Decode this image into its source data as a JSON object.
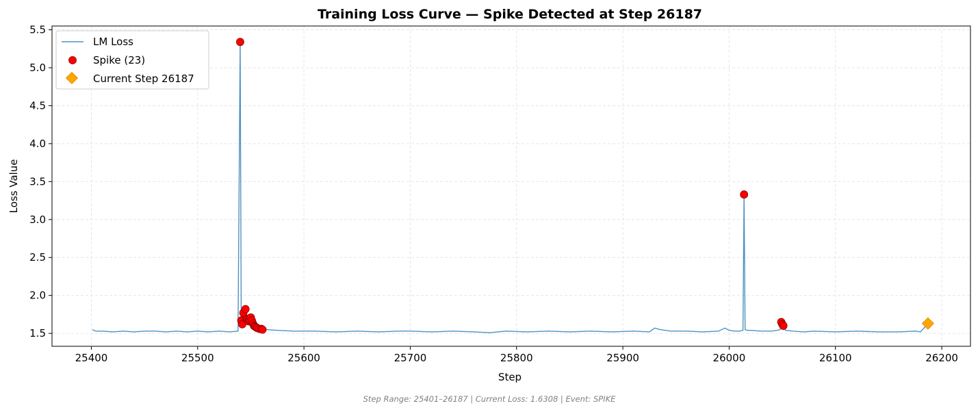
{
  "chart_data": {
    "type": "line",
    "title": "Training Loss Curve — Spike Detected at Step 26187",
    "xlabel": "Step",
    "ylabel": "Loss Value",
    "xlim": [
      25363,
      26227
    ],
    "ylim": [
      1.33,
      5.55
    ],
    "xticks": [
      25400,
      25500,
      25600,
      25700,
      25800,
      25900,
      26000,
      26100,
      26200
    ],
    "yticks": [
      1.5,
      2.0,
      2.5,
      3.0,
      3.5,
      4.0,
      4.5,
      5.0,
      5.5
    ],
    "grid": true,
    "legend_position": "top-left",
    "footer": "Step Range: 25401–26187 | Current Loss: 1.6308 | Event: SPIKE",
    "colors": {
      "line": "#1f77b4",
      "spike": "#ff0000",
      "spike_edge": "#8b0000",
      "current": "#ffa500",
      "current_edge": "#e08a00"
    },
    "series": [
      {
        "name": "LM Loss",
        "kind": "line",
        "x": [
          25401,
          25404,
          25410,
          25420,
          25430,
          25440,
          25450,
          25460,
          25470,
          25480,
          25490,
          25500,
          25510,
          25520,
          25530,
          25538,
          25540,
          25541,
          25542,
          25543,
          25545,
          25546,
          25548,
          25550,
          25551,
          25552,
          25553,
          25555,
          25557,
          25559,
          25561,
          25565,
          25575,
          25590,
          25610,
          25630,
          25650,
          25670,
          25690,
          25700,
          25720,
          25740,
          25760,
          25775,
          25790,
          25810,
          25830,
          25850,
          25870,
          25890,
          25910,
          25925,
          25930,
          25935,
          25945,
          25960,
          25975,
          25990,
          25996,
          26000,
          26005,
          26010,
          26013,
          26014,
          26015,
          26017,
          26020,
          26030,
          26040,
          26045,
          26048,
          26049,
          26050,
          26051,
          26053,
          26060,
          26070,
          26080,
          26100,
          26120,
          26140,
          26160,
          26175,
          26180,
          26187
        ],
        "y": [
          1.55,
          1.53,
          1.53,
          1.52,
          1.53,
          1.52,
          1.53,
          1.53,
          1.52,
          1.53,
          1.52,
          1.53,
          1.52,
          1.53,
          1.52,
          1.53,
          5.34,
          1.68,
          1.62,
          1.77,
          1.82,
          1.68,
          1.65,
          1.72,
          1.68,
          1.62,
          1.6,
          1.58,
          1.57,
          1.56,
          1.56,
          1.55,
          1.54,
          1.53,
          1.53,
          1.52,
          1.53,
          1.52,
          1.53,
          1.53,
          1.52,
          1.53,
          1.52,
          1.51,
          1.53,
          1.52,
          1.53,
          1.52,
          1.53,
          1.52,
          1.53,
          1.52,
          1.57,
          1.55,
          1.53,
          1.53,
          1.52,
          1.53,
          1.57,
          1.54,
          1.53,
          1.53,
          1.54,
          3.33,
          1.55,
          1.54,
          1.54,
          1.53,
          1.53,
          1.54,
          1.55,
          1.65,
          1.62,
          1.6,
          1.54,
          1.53,
          1.52,
          1.53,
          1.52,
          1.53,
          1.52,
          1.52,
          1.53,
          1.52,
          1.63
        ]
      },
      {
        "name": "Spike (23)",
        "kind": "scatter",
        "x": [
          25540,
          25541,
          25542,
          25543,
          25545,
          25546,
          25547,
          25548,
          25549,
          25550,
          25551,
          25552,
          25553,
          25554,
          25555,
          25556,
          25558,
          25560,
          25561,
          26014,
          26049,
          26050,
          26051
        ],
        "y": [
          5.34,
          1.67,
          1.62,
          1.77,
          1.82,
          1.69,
          1.68,
          1.66,
          1.67,
          1.71,
          1.67,
          1.63,
          1.6,
          1.59,
          1.58,
          1.57,
          1.56,
          1.56,
          1.55,
          3.33,
          1.65,
          1.62,
          1.6
        ]
      },
      {
        "name": "Current Step 26187",
        "kind": "marker",
        "x": [
          26187
        ],
        "y": [
          1.6308
        ]
      }
    ]
  }
}
